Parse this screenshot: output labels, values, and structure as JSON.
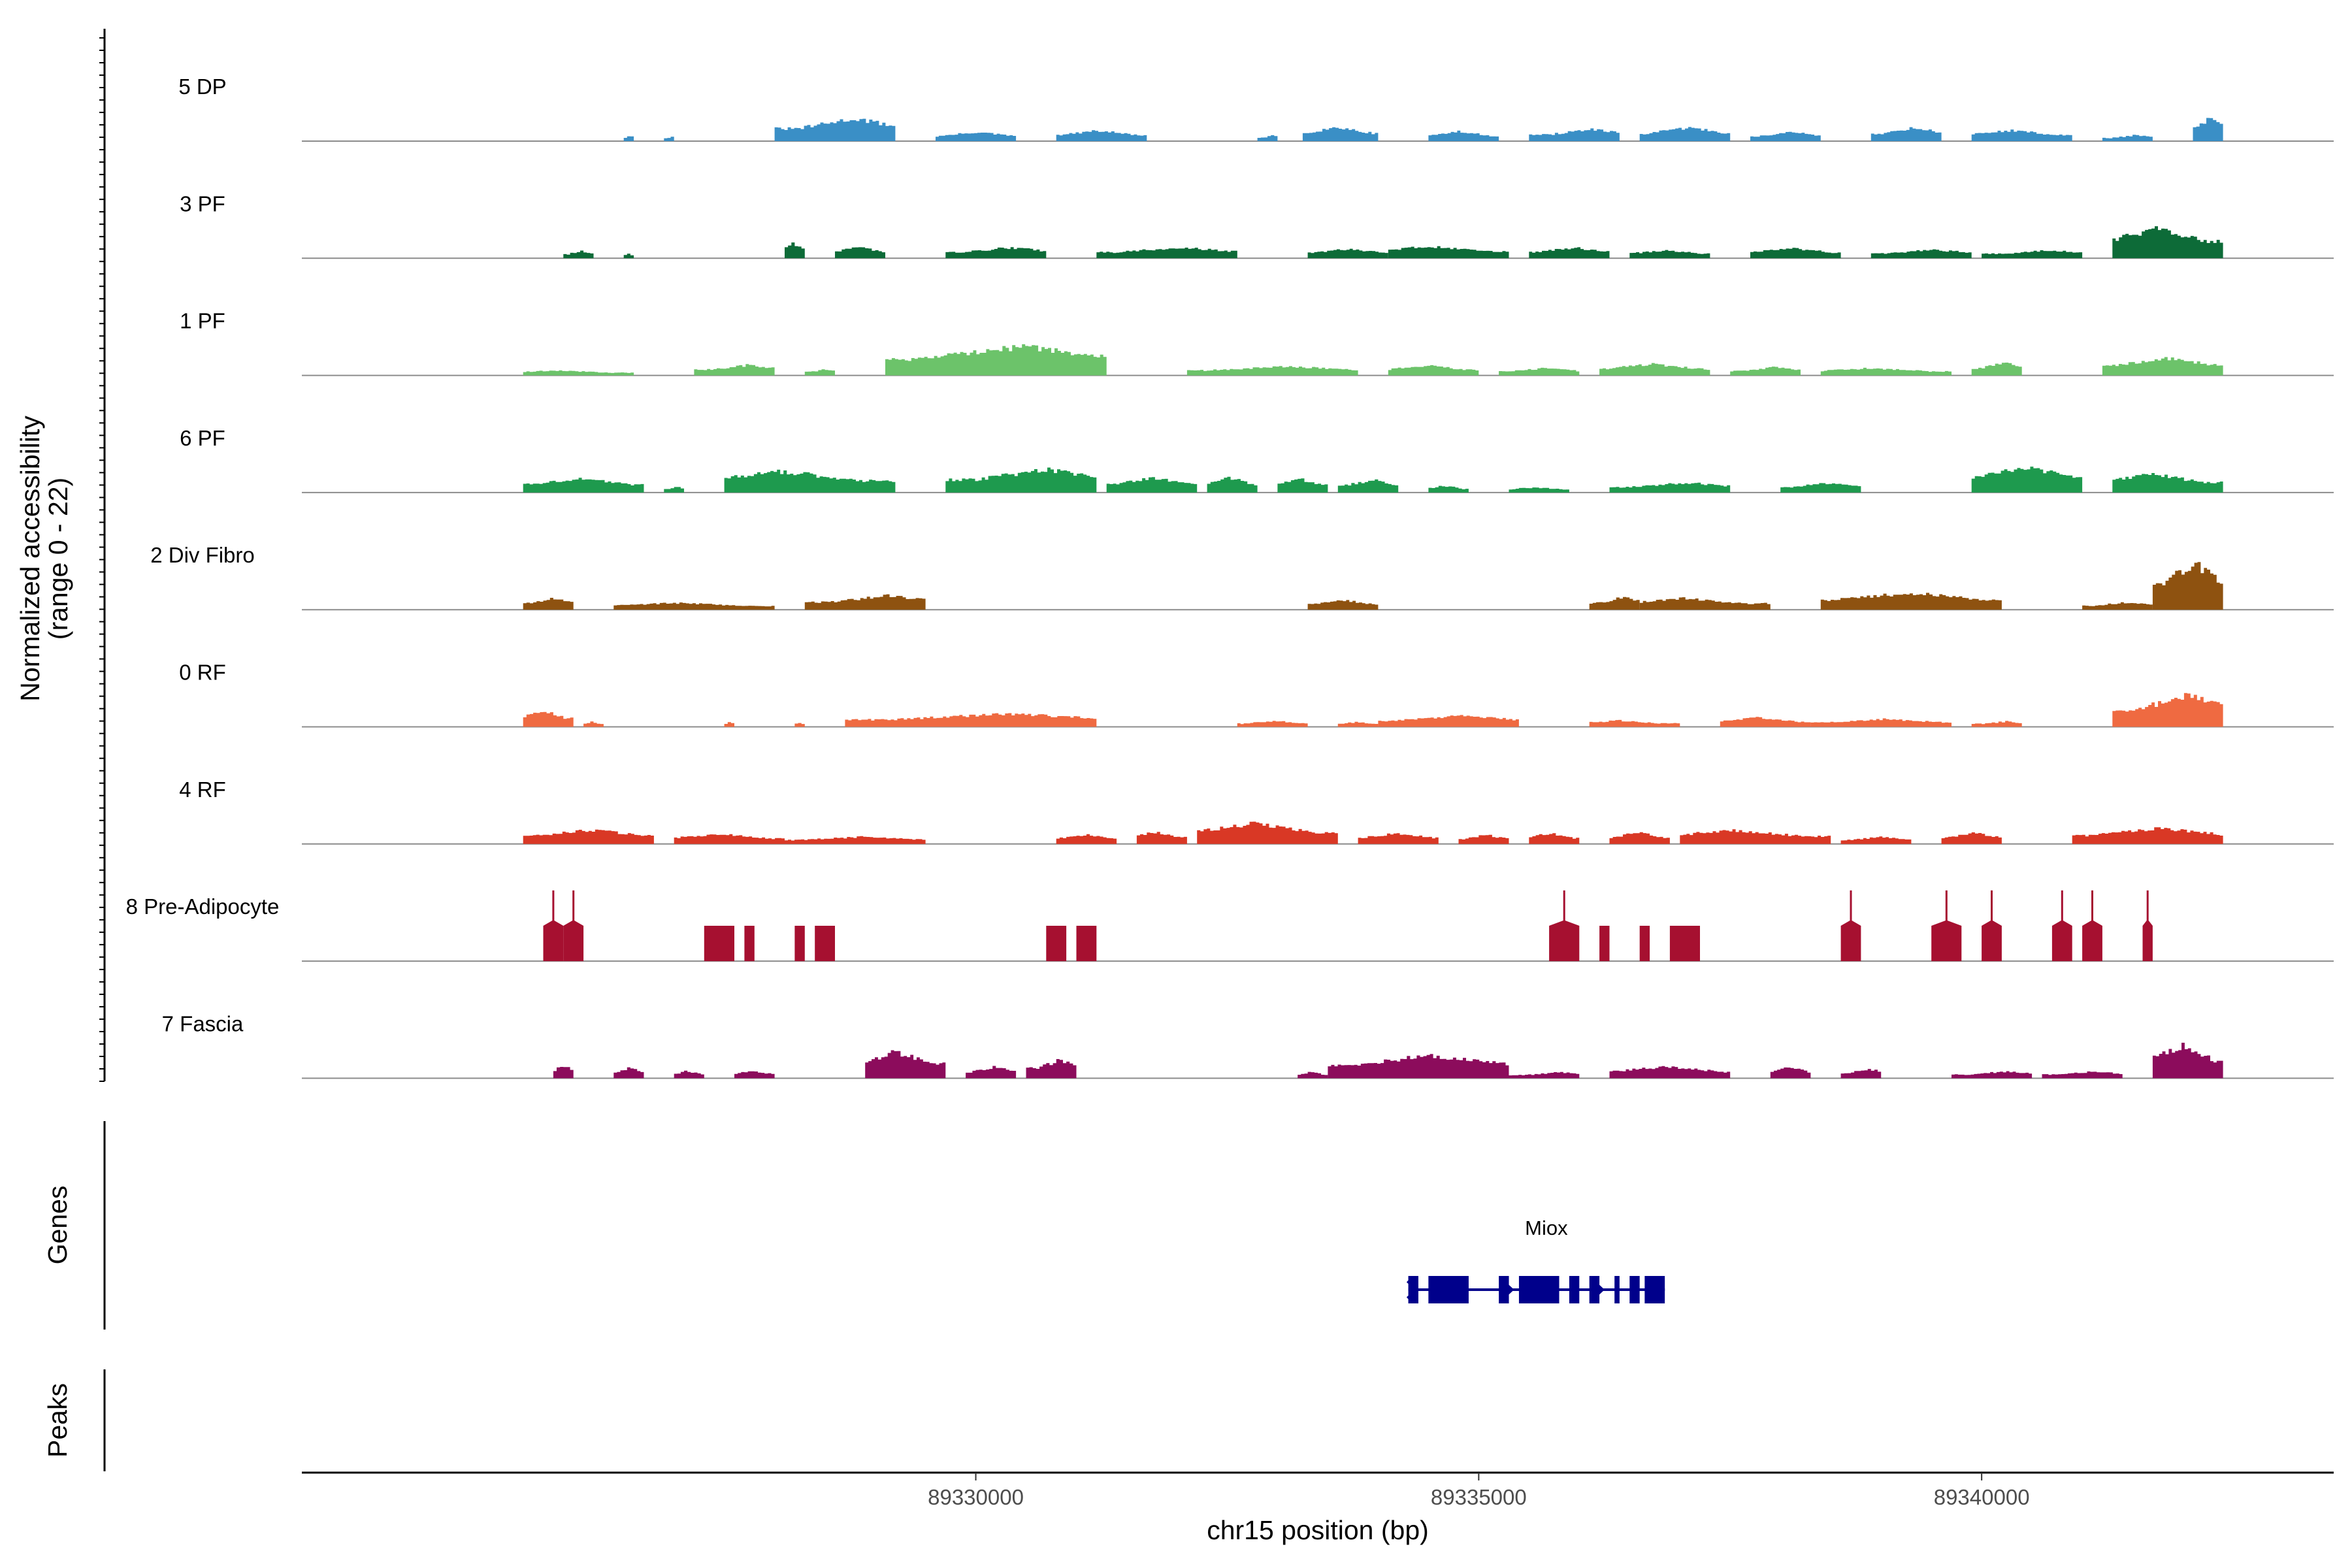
{
  "chart_data": {
    "type": "area",
    "title": "",
    "xlabel": "chr15 position (bp)",
    "ylabel": "Normalized accessibility",
    "ylabel_sub": "(range 0 - 22)",
    "xlim": [
      89323300,
      89343500
    ],
    "x_ticks": [
      89330000,
      89335000,
      89340000
    ],
    "x_tick_labels": [
      "89330000",
      "89335000",
      "89340000"
    ],
    "ylim": [
      0,
      22
    ],
    "genes_label": "Genes",
    "peaks_label": "Peaks",
    "tracks": [
      {
        "name": "5 DP",
        "color": "#3a8fc6",
        "regions": [
          [
            89326500,
            89326600,
            1.3
          ],
          [
            89326900,
            89327000,
            1.1
          ],
          [
            89328000,
            89329200,
            5.0
          ],
          [
            89329600,
            89330400,
            2.0
          ],
          [
            89330800,
            89331700,
            2.3
          ],
          [
            89332800,
            89333000,
            1.3
          ],
          [
            89333250,
            89334000,
            3.1
          ],
          [
            89334500,
            89335200,
            2.1
          ],
          [
            89335500,
            89336400,
            2.6
          ],
          [
            89336600,
            89337500,
            3.0
          ],
          [
            89337700,
            89338400,
            2.0
          ],
          [
            89338900,
            89339600,
            3.0
          ],
          [
            89339900,
            89340900,
            2.4
          ],
          [
            89341200,
            89341700,
            1.3
          ],
          [
            89342100,
            89342400,
            5.3
          ]
        ]
      },
      {
        "name": "3 PF",
        "color": "#0d6b38",
        "regions": [
          [
            89325900,
            89326200,
            1.6
          ],
          [
            89326500,
            89326600,
            1.1
          ],
          [
            89328100,
            89328300,
            3.5
          ],
          [
            89328600,
            89329100,
            2.6
          ],
          [
            89329700,
            89330700,
            2.4
          ],
          [
            89331200,
            89332600,
            2.4
          ],
          [
            89333300,
            89334100,
            2.1
          ],
          [
            89334100,
            89335300,
            2.7
          ],
          [
            89335500,
            89336300,
            2.4
          ],
          [
            89336500,
            89337300,
            1.8
          ],
          [
            89337700,
            89338600,
            2.3
          ],
          [
            89338900,
            89339900,
            1.9
          ],
          [
            89340000,
            89341000,
            1.8
          ],
          [
            89341300,
            89342400,
            6.7
          ]
        ]
      },
      {
        "name": "1 PF",
        "color": "#6cc36a",
        "regions": [
          [
            89325500,
            89326600,
            1.1
          ],
          [
            89327200,
            89328000,
            2.3
          ],
          [
            89328300,
            89328600,
            1.4
          ],
          [
            89329100,
            89331300,
            6.4
          ],
          [
            89332100,
            89333800,
            2.0
          ],
          [
            89334100,
            89335000,
            2.2
          ],
          [
            89335200,
            89336000,
            1.6
          ],
          [
            89336200,
            89337300,
            2.5
          ],
          [
            89337500,
            89338200,
            1.8
          ],
          [
            89338400,
            89339700,
            1.6
          ],
          [
            89339900,
            89340400,
            2.9
          ],
          [
            89341200,
            89342400,
            3.8
          ]
        ]
      },
      {
        "name": "6 PF",
        "color": "#1e9a4e",
        "regions": [
          [
            89325500,
            89326700,
            3.1
          ],
          [
            89326900,
            89327100,
            1.3
          ],
          [
            89327500,
            89329200,
            4.7
          ],
          [
            89329700,
            89331200,
            5.1
          ],
          [
            89331300,
            89332200,
            3.2
          ],
          [
            89332300,
            89332800,
            3.3
          ],
          [
            89333000,
            89333500,
            3.0
          ],
          [
            89333600,
            89334200,
            2.8
          ],
          [
            89334500,
            89334900,
            1.5
          ],
          [
            89335300,
            89335900,
            1.2
          ],
          [
            89336300,
            89337500,
            2.2
          ],
          [
            89338000,
            89338800,
            2.1
          ],
          [
            89339900,
            89341000,
            5.8
          ],
          [
            89341300,
            89342400,
            4.1
          ]
        ]
      },
      {
        "name": "2 Div Fibro",
        "color": "#8e5210",
        "regions": [
          [
            89325500,
            89326000,
            2.6
          ],
          [
            89326400,
            89328000,
            1.5
          ],
          [
            89328300,
            89329500,
            3.1
          ],
          [
            89333300,
            89334000,
            2.1
          ],
          [
            89336100,
            89336600,
            2.7
          ],
          [
            89336600,
            89337900,
            2.5
          ],
          [
            89338400,
            89340200,
            3.7
          ],
          [
            89341000,
            89341700,
            1.6
          ],
          [
            89341700,
            89342400,
            10.2
          ]
        ]
      },
      {
        "name": "0 RF",
        "color": "#ef6a41",
        "regions": [
          [
            89325500,
            89326000,
            3.5
          ],
          [
            89326100,
            89326300,
            1.1
          ],
          [
            89327500,
            89327600,
            1.1
          ],
          [
            89328200,
            89328300,
            1.0
          ],
          [
            89328700,
            89331200,
            2.9
          ],
          [
            89332600,
            89333300,
            1.3
          ],
          [
            89333600,
            89334000,
            1.1
          ],
          [
            89334000,
            89335400,
            2.5
          ],
          [
            89336100,
            89337000,
            1.4
          ],
          [
            89337400,
            89338300,
            2.0
          ],
          [
            89338300,
            89339700,
            1.7
          ],
          [
            89339900,
            89340400,
            1.2
          ],
          [
            89341300,
            89342400,
            6.9
          ]
        ]
      },
      {
        "name": "4 RF",
        "color": "#d93825",
        "regions": [
          [
            89325500,
            89326800,
            3.1
          ],
          [
            89327000,
            89328100,
            2.2
          ],
          [
            89328100,
            89329500,
            1.6
          ],
          [
            89330800,
            89331400,
            2.1
          ],
          [
            89331600,
            89332100,
            2.7
          ],
          [
            89332200,
            89333600,
            4.5
          ],
          [
            89333800,
            89334600,
            2.4
          ],
          [
            89334800,
            89335300,
            2.0
          ],
          [
            89335500,
            89336000,
            2.4
          ],
          [
            89336300,
            89336900,
            2.5
          ],
          [
            89337000,
            89338500,
            3.1
          ],
          [
            89338600,
            89339300,
            1.6
          ],
          [
            89339600,
            89340200,
            2.4
          ],
          [
            89340900,
            89342400,
            3.5
          ]
        ]
      },
      {
        "name": "8 Pre-Adipocyte",
        "color": "#a61030",
        "regions": [
          [
            89325700,
            89325900,
            14.0
          ],
          [
            89325900,
            89326100,
            14.0
          ],
          [
            89327300,
            89327600,
            7.0
          ],
          [
            89327700,
            89327800,
            7.0
          ],
          [
            89328200,
            89328300,
            7.0
          ],
          [
            89328400,
            89328600,
            7.0
          ],
          [
            89330700,
            89330900,
            7.0
          ],
          [
            89331000,
            89331200,
            7.0
          ],
          [
            89335700,
            89336000,
            14.0
          ],
          [
            89336200,
            89336300,
            7.0
          ],
          [
            89336600,
            89336700,
            7.0
          ],
          [
            89336900,
            89337200,
            7.0
          ],
          [
            89338600,
            89338800,
            14.0
          ],
          [
            89339500,
            89339800,
            14.0
          ],
          [
            89340000,
            89340200,
            14.0
          ],
          [
            89340700,
            89340900,
            14.0
          ],
          [
            89341000,
            89341200,
            14.0
          ],
          [
            89341600,
            89341700,
            14.0
          ]
        ]
      },
      {
        "name": "7 Fascia",
        "color": "#8c0c5c",
        "regions": [
          [
            89325800,
            89326000,
            3.0
          ],
          [
            89326400,
            89326700,
            2.3
          ],
          [
            89327000,
            89327300,
            1.6
          ],
          [
            89327600,
            89328000,
            1.7
          ],
          [
            89328900,
            89329700,
            5.8
          ],
          [
            89329900,
            89330400,
            2.5
          ],
          [
            89330500,
            89331000,
            4.1
          ],
          [
            89333200,
            89333500,
            1.4
          ],
          [
            89333500,
            89335300,
            5.1
          ],
          [
            89335300,
            89336000,
            1.3
          ],
          [
            89336300,
            89337500,
            2.6
          ],
          [
            89337900,
            89338300,
            2.5
          ],
          [
            89338600,
            89339000,
            2.1
          ],
          [
            89339700,
            89340500,
            1.5
          ],
          [
            89340600,
            89341400,
            1.5
          ],
          [
            89341700,
            89342400,
            7.2
          ]
        ]
      }
    ],
    "genes": [
      {
        "name": "Miox",
        "start": 89334300,
        "end": 89336850,
        "exons": [
          [
            89334300,
            89334400
          ],
          [
            89334500,
            89334900
          ],
          [
            89335200,
            89335300
          ],
          [
            89335400,
            89335800
          ],
          [
            89335900,
            89336000
          ],
          [
            89336100,
            89336200
          ],
          [
            89336350,
            89336400
          ],
          [
            89336500,
            89336600
          ],
          [
            89336650,
            89336850
          ]
        ],
        "direction_marks": [
          89334350,
          89335300,
          89336200
        ]
      }
    ]
  }
}
